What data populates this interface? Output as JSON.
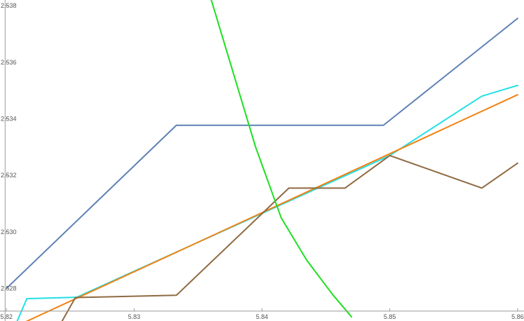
{
  "chart_data": {
    "type": "line",
    "title": "",
    "xlabel": "",
    "ylabel": "",
    "xlim": [
      5.8195,
      5.8605
    ],
    "ylim": [
      2.52685,
      2.5382
    ],
    "grid": false,
    "legend": "none",
    "x_ticks": [
      {
        "value": 5.82,
        "label": "5.82"
      },
      {
        "value": 5.83,
        "label": "5.83"
      },
      {
        "value": 5.84,
        "label": "5.84"
      },
      {
        "value": 5.85,
        "label": "5.85"
      },
      {
        "value": 5.86,
        "label": "5.86"
      }
    ],
    "y_ticks": [
      {
        "value": 2.528,
        "label": "2.528"
      },
      {
        "value": 2.53,
        "label": "2.530"
      },
      {
        "value": 2.532,
        "label": "2.532"
      },
      {
        "value": 2.534,
        "label": "2.534"
      },
      {
        "value": 2.536,
        "label": "2.536"
      },
      {
        "value": 2.538,
        "label": "2.538"
      }
    ],
    "series": [
      {
        "color": "#5e81b5",
        "points": [
          [
            5.82,
            2.528
          ],
          [
            5.8333,
            2.53377
          ],
          [
            5.8495,
            2.53377
          ],
          [
            5.86,
            2.53755
          ]
        ]
      },
      {
        "color": "#22e0e8",
        "points": [
          [
            5.8208,
            2.5268
          ],
          [
            5.8216,
            2.52764
          ],
          [
            5.8255,
            2.52769
          ],
          [
            5.85,
            2.5327
          ],
          [
            5.8572,
            2.5348
          ],
          [
            5.86,
            2.53518
          ]
        ]
      },
      {
        "color": "#f08214",
        "points": [
          [
            5.8214,
            2.5268
          ],
          [
            5.86,
            2.53485
          ]
        ]
      },
      {
        "color": "#8f6a42",
        "points": [
          [
            5.8243,
            2.5268
          ],
          [
            5.8254,
            2.52768
          ],
          [
            5.8333,
            2.52776
          ],
          [
            5.8421,
            2.53155
          ],
          [
            5.8465,
            2.53155
          ],
          [
            5.85,
            2.5327
          ],
          [
            5.8572,
            2.53155
          ],
          [
            5.86,
            2.53243
          ]
        ]
      },
      {
        "color": "#1ee01e",
        "points": [
          [
            5.8355,
            2.539
          ],
          [
            5.8375,
            2.536
          ],
          [
            5.8395,
            2.533
          ],
          [
            5.8415,
            2.5305
          ],
          [
            5.8435,
            2.529
          ],
          [
            5.8455,
            2.5278
          ],
          [
            5.847,
            2.527
          ]
        ]
      }
    ]
  }
}
